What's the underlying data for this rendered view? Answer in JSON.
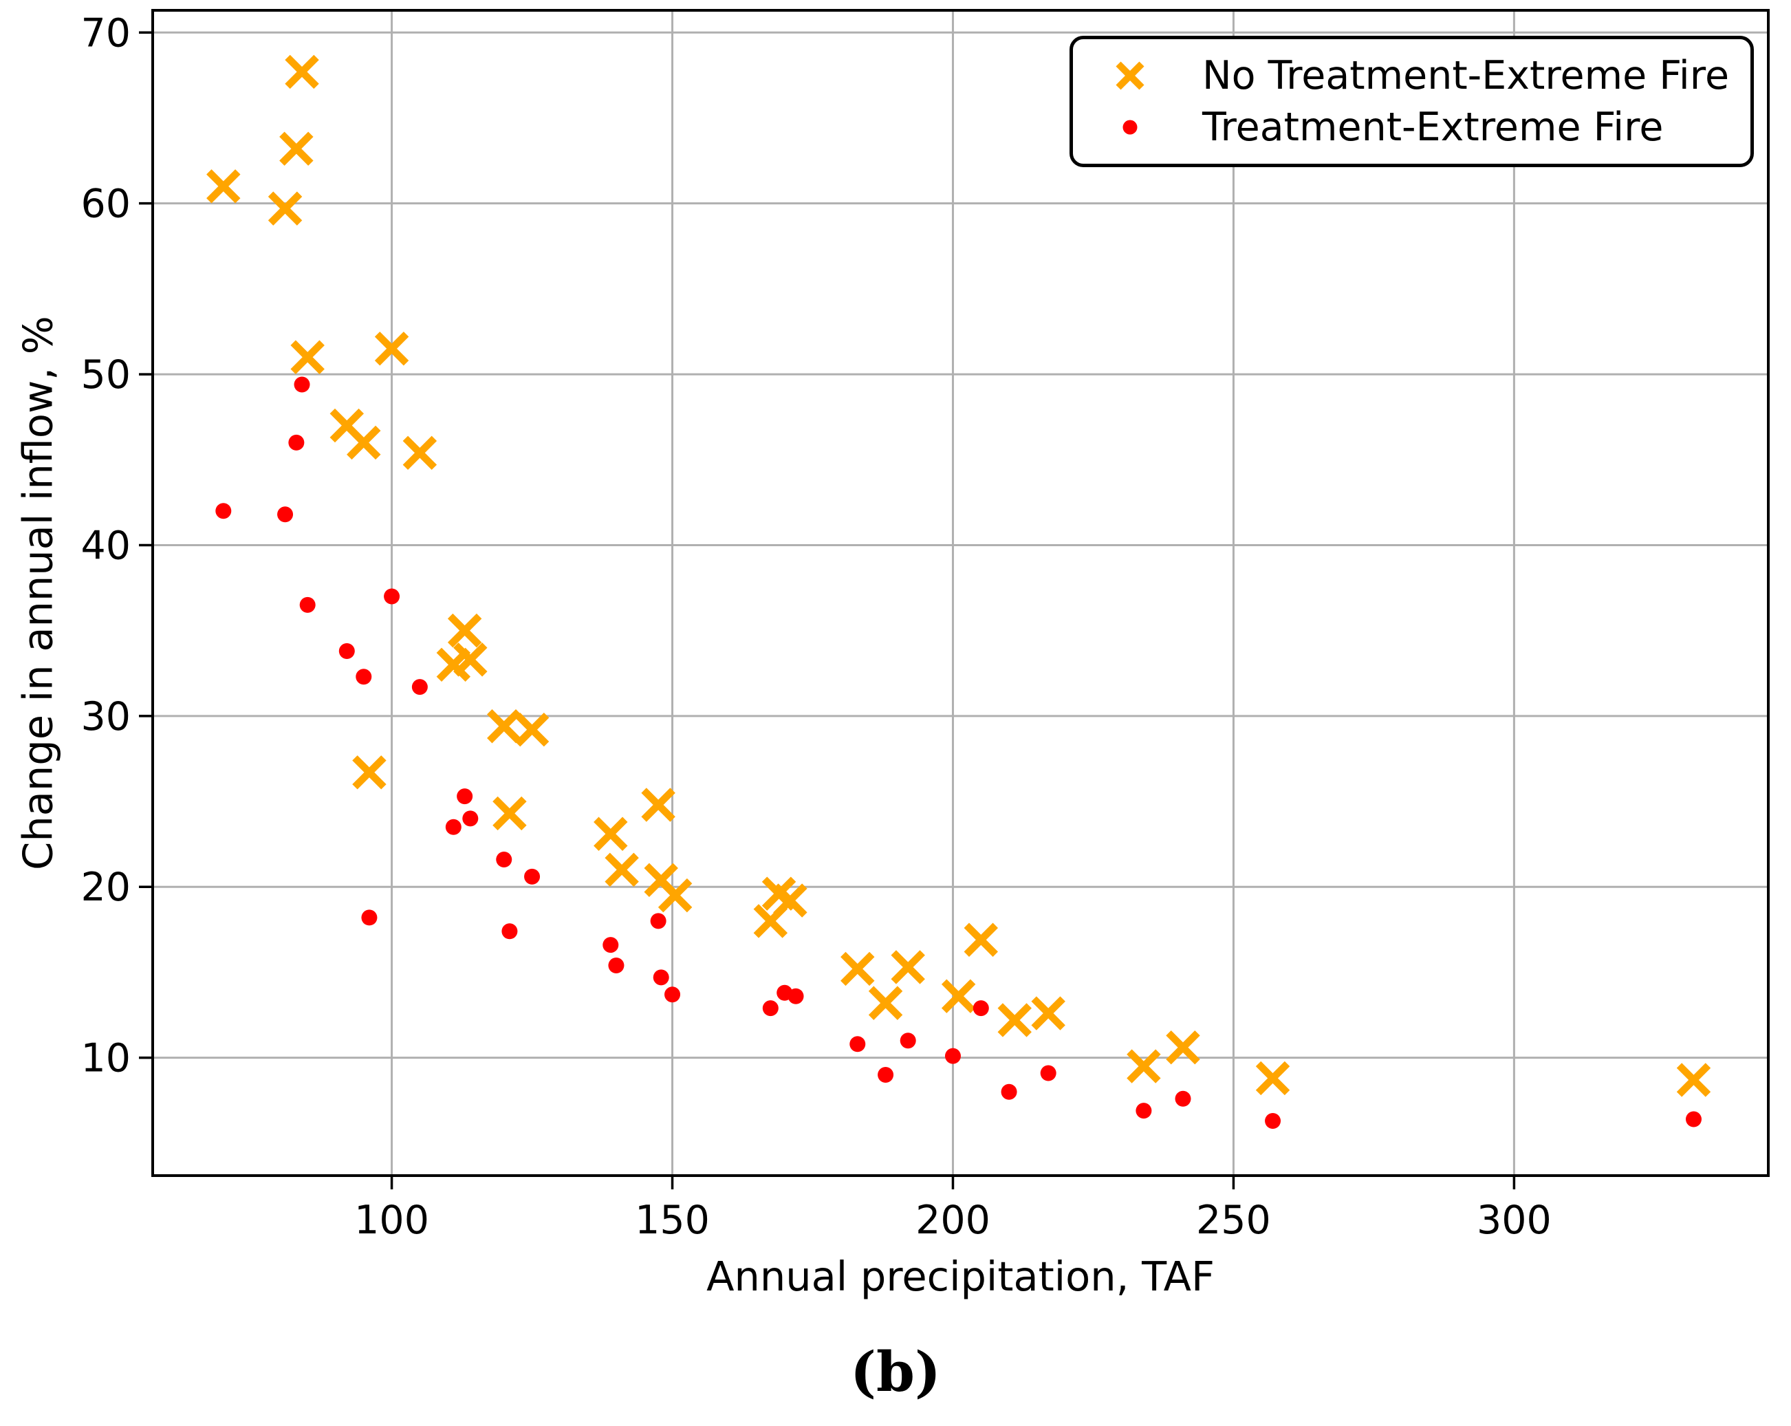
{
  "figure": {
    "caption": "(b)"
  },
  "chart_data": {
    "type": "scatter",
    "title": "",
    "xlabel": "Annual precipitation, TAF",
    "ylabel": "Change in annual inflow, %",
    "xlim": [
      57.4,
      345.3
    ],
    "ylim": [
      3.1,
      71.3
    ],
    "xticks": [
      100,
      150,
      200,
      250,
      300
    ],
    "yticks": [
      10,
      20,
      30,
      40,
      50,
      60,
      70
    ],
    "grid": true,
    "grid_color": "#b0b0b0",
    "axis_color": "#000000",
    "legend_position": "upper right",
    "series": [
      {
        "name": "No Treatment-Extreme Fire",
        "marker": "x",
        "color": "#FFA500",
        "points": [
          [
            70,
            61.0
          ],
          [
            81,
            59.7
          ],
          [
            83,
            63.2
          ],
          [
            84,
            67.7
          ],
          [
            85,
            51.0
          ],
          [
            92,
            47.0
          ],
          [
            95,
            46.0
          ],
          [
            96,
            26.7
          ],
          [
            100,
            51.5
          ],
          [
            105,
            45.4
          ],
          [
            111,
            33.0
          ],
          [
            113,
            35.0
          ],
          [
            114,
            33.3
          ],
          [
            120,
            29.4
          ],
          [
            121,
            24.3
          ],
          [
            125,
            29.2
          ],
          [
            139,
            23.1
          ],
          [
            141,
            21.0
          ],
          [
            147.5,
            24.8
          ],
          [
            148,
            20.4
          ],
          [
            150.5,
            19.5
          ],
          [
            167.5,
            18.0
          ],
          [
            169,
            19.6
          ],
          [
            171,
            19.2
          ],
          [
            183,
            15.2
          ],
          [
            188,
            13.2
          ],
          [
            192,
            15.3
          ],
          [
            201,
            13.6
          ],
          [
            205,
            16.9
          ],
          [
            211,
            12.2
          ],
          [
            217,
            12.6
          ],
          [
            234,
            9.5
          ],
          [
            241,
            10.6
          ],
          [
            257,
            8.8
          ],
          [
            332,
            8.7
          ]
        ]
      },
      {
        "name": "Treatment-Extreme Fire",
        "marker": "circle",
        "color": "#FF0000",
        "points": [
          [
            70,
            42.0
          ],
          [
            81,
            41.8
          ],
          [
            83,
            46.0
          ],
          [
            84,
            49.4
          ],
          [
            85,
            36.5
          ],
          [
            92,
            33.8
          ],
          [
            95,
            32.3
          ],
          [
            96,
            18.2
          ],
          [
            100,
            37.0
          ],
          [
            105,
            31.7
          ],
          [
            111,
            23.5
          ],
          [
            113,
            25.3
          ],
          [
            114,
            24.0
          ],
          [
            120,
            21.6
          ],
          [
            121,
            17.4
          ],
          [
            125,
            20.6
          ],
          [
            139,
            16.6
          ],
          [
            140,
            15.4
          ],
          [
            147.5,
            18.0
          ],
          [
            148,
            14.7
          ],
          [
            150,
            13.7
          ],
          [
            167.5,
            12.9
          ],
          [
            170,
            13.8
          ],
          [
            172,
            13.6
          ],
          [
            183,
            10.8
          ],
          [
            188,
            9.0
          ],
          [
            192,
            11.0
          ],
          [
            200,
            10.1
          ],
          [
            205,
            12.9
          ],
          [
            210,
            8.0
          ],
          [
            217,
            9.1
          ],
          [
            234,
            6.9
          ],
          [
            241,
            7.6
          ],
          [
            257,
            6.3
          ],
          [
            332,
            6.4
          ]
        ]
      }
    ]
  }
}
